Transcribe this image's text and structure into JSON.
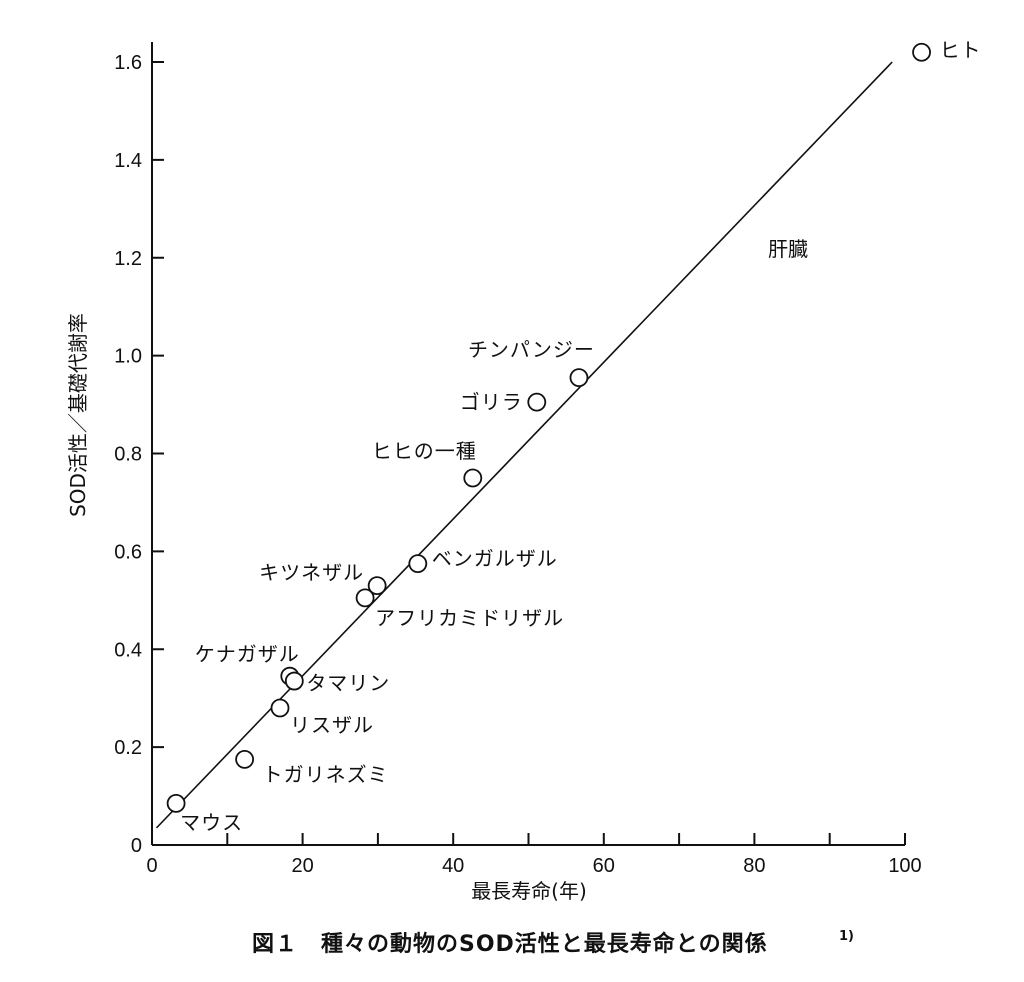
{
  "chart_data": {
    "type": "scatter",
    "title": "",
    "xlabel": "最長寿命(年)",
    "ylabel": "SOD活性／基礎代謝率",
    "xlim": [
      0,
      100
    ],
    "ylim": [
      0,
      1.6
    ],
    "x_ticks": [
      0,
      20,
      40,
      60,
      80,
      100
    ],
    "y_ticks": [
      0,
      0.2,
      0.4,
      0.6,
      0.8,
      1.0,
      1.2,
      1.4,
      1.6
    ],
    "x_tick_labels": [
      "0",
      "20",
      "40",
      "60",
      "80",
      "100"
    ],
    "y_tick_labels": [
      "0",
      "0.2",
      "0.4",
      "0.6",
      "0.8",
      "1.0",
      "1.2",
      "1.4",
      "1.6"
    ],
    "grid": false,
    "annotation": "肝臓",
    "points": [
      {
        "label": "マウス",
        "x": 3.2,
        "y": 0.085
      },
      {
        "label": "トガリネズミ",
        "x": 12.3,
        "y": 0.175
      },
      {
        "label": "リスザル",
        "x": 17.0,
        "y": 0.28
      },
      {
        "label": "ケナガザル",
        "x": 18.3,
        "y": 0.345
      },
      {
        "label": "タマリン",
        "x": 18.9,
        "y": 0.335
      },
      {
        "label": "アフリカミドリザル",
        "x": 28.3,
        "y": 0.505
      },
      {
        "label": "キツネザル",
        "x": 29.9,
        "y": 0.53
      },
      {
        "label": "ベンガルザル",
        "x": 35.3,
        "y": 0.575
      },
      {
        "label": "ヒヒの一種",
        "x": 42.6,
        "y": 0.75
      },
      {
        "label": "ゴリラ",
        "x": 51.1,
        "y": 0.905
      },
      {
        "label": "チンパンジー",
        "x": 56.7,
        "y": 0.955
      },
      {
        "label": "ヒト",
        "x": 102.2,
        "y": 1.62
      }
    ],
    "fit_line": {
      "x": [
        0.6,
        98.3
      ],
      "y": 0.0,
      "y_start": 0.035,
      "y_end": 1.6
    }
  },
  "caption": {
    "text": "図１　種々の動物のSOD活性と最長寿命との関係",
    "ref": "1)"
  }
}
